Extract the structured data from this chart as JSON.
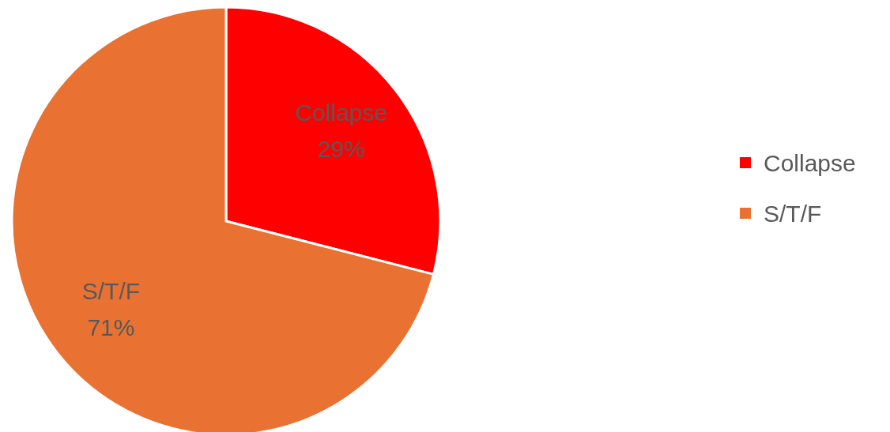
{
  "chart_data": {
    "type": "pie",
    "categories": [
      "Collapse",
      "S/T/F"
    ],
    "values": [
      29,
      71
    ],
    "colors": [
      "#ff0000",
      "#e97132"
    ],
    "value_labels": [
      "29%",
      "71%"
    ],
    "legend": "right"
  }
}
